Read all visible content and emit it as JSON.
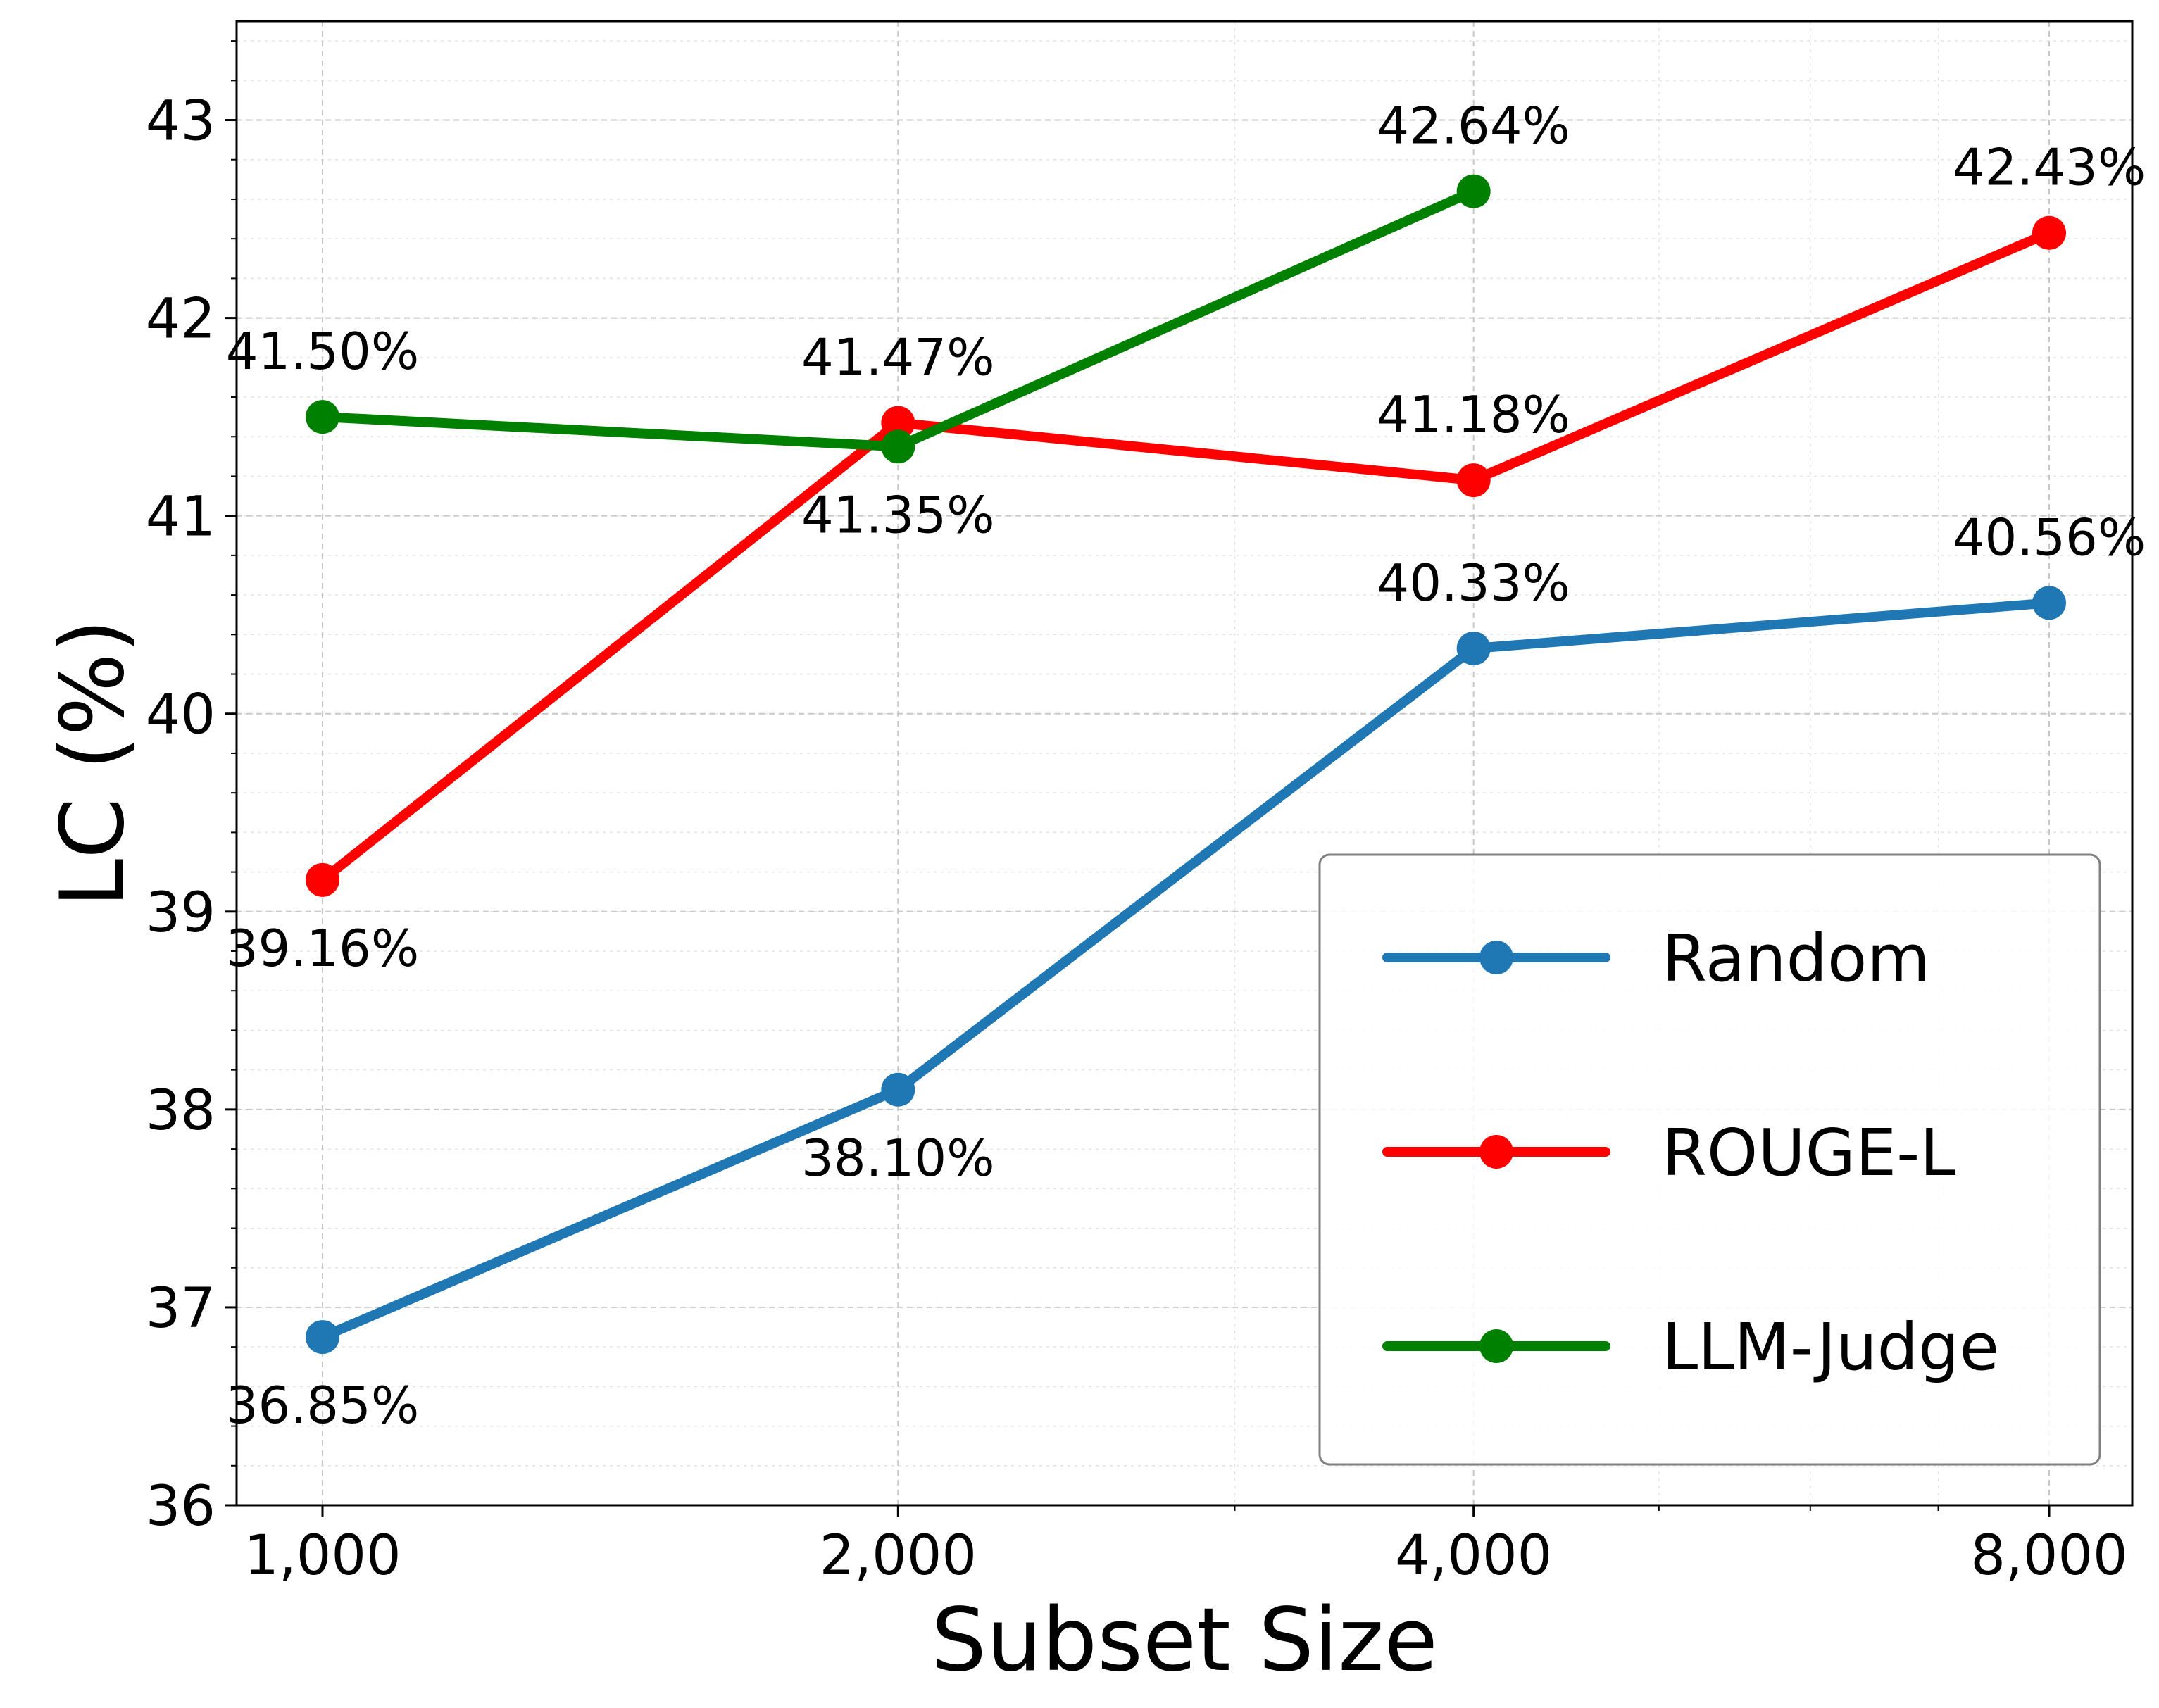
{
  "chart_data": {
    "type": "line",
    "xscale": "log2",
    "x": [
      1000,
      2000,
      4000,
      8000
    ],
    "x_tick_labels": [
      "1,000",
      "2,000",
      "4,000",
      "8,000"
    ],
    "xlabel": "Subset Size",
    "ylabel": "LC (%)",
    "ylim": [
      36,
      43.5
    ],
    "y_ticks": [
      36,
      37,
      38,
      39,
      40,
      41,
      42,
      43
    ],
    "y_tick_labels": [
      "36",
      "37",
      "38",
      "39",
      "40",
      "41",
      "42",
      "43"
    ],
    "grid": true,
    "legend_position": "bottom-right",
    "series": [
      {
        "name": "Random",
        "color": "#1f77b4",
        "x": [
          1000,
          2000,
          4000,
          8000
        ],
        "values": [
          36.85,
          38.1,
          40.33,
          40.56
        ],
        "labels": [
          "36.85%",
          "38.10%",
          "40.33%",
          "40.56%"
        ],
        "label_side": [
          "below",
          "below",
          "above",
          "above"
        ]
      },
      {
        "name": "ROUGE-L",
        "color": "#ff0000",
        "x": [
          1000,
          2000,
          4000,
          8000
        ],
        "values": [
          39.16,
          41.47,
          41.18,
          42.43
        ],
        "labels": [
          "39.16%",
          "41.47%",
          "41.18%",
          "42.43%"
        ],
        "label_side": [
          "below",
          "above",
          "above",
          "above"
        ]
      },
      {
        "name": "LLM-Judge",
        "color": "#008000",
        "x": [
          1000,
          2000,
          4000
        ],
        "values": [
          41.5,
          41.35,
          42.64
        ],
        "labels": [
          "41.50%",
          "41.35%",
          "42.64%"
        ],
        "label_side": [
          "above",
          "below",
          "above"
        ]
      }
    ]
  }
}
